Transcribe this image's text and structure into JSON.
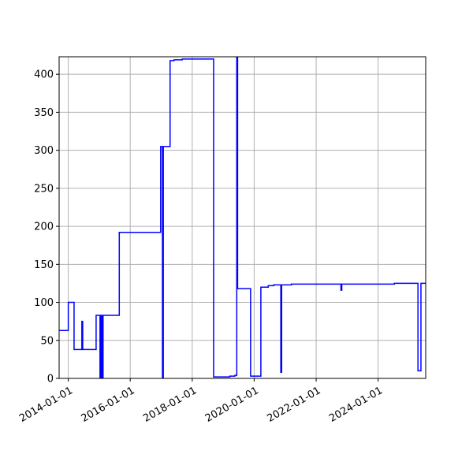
{
  "chart_data": {
    "type": "line",
    "title": "",
    "xlabel": "",
    "ylabel": "",
    "x_axis_type": "date",
    "xlim": [
      "2013-09-15",
      "2025-07-15"
    ],
    "ylim": [
      0,
      423
    ],
    "grid": true,
    "line_color": "#0000ff",
    "axis_color": "#000000",
    "grid_color": "#b0b0b0",
    "x_ticks": [
      {
        "value": "2014-01-01",
        "label": "2014-01-01"
      },
      {
        "value": "2016-01-01",
        "label": "2016-01-01"
      },
      {
        "value": "2018-01-01",
        "label": "2018-01-01"
      },
      {
        "value": "2020-01-01",
        "label": "2020-01-01"
      },
      {
        "value": "2022-01-01",
        "label": "2022-01-01"
      },
      {
        "value": "2024-01-01",
        "label": "2024-01-01"
      }
    ],
    "y_ticks": [
      {
        "value": 0,
        "label": "0"
      },
      {
        "value": 50,
        "label": "50"
      },
      {
        "value": 100,
        "label": "100"
      },
      {
        "value": 150,
        "label": "150"
      },
      {
        "value": 200,
        "label": "200"
      },
      {
        "value": 250,
        "label": "250"
      },
      {
        "value": 300,
        "label": "300"
      },
      {
        "value": 350,
        "label": "350"
      },
      {
        "value": 400,
        "label": "400"
      }
    ],
    "series": [
      {
        "step": "post",
        "points": [
          [
            "2013-09-15",
            63
          ],
          [
            "2014-01-01",
            100
          ],
          [
            "2014-03-10",
            38
          ],
          [
            "2014-06-10",
            75
          ],
          [
            "2014-06-20",
            38
          ],
          [
            "2014-11-25",
            83
          ],
          [
            "2015-01-10",
            0
          ],
          [
            "2015-01-22",
            83
          ],
          [
            "2015-02-05",
            0
          ],
          [
            "2015-02-15",
            83
          ],
          [
            "2015-08-25",
            192
          ],
          [
            "2016-12-25",
            305
          ],
          [
            "2017-01-15",
            0
          ],
          [
            "2017-01-25",
            305
          ],
          [
            "2017-04-15",
            418
          ],
          [
            "2017-06-01",
            419
          ],
          [
            "2017-09-05",
            420
          ],
          [
            "2018-09-10",
            2
          ],
          [
            "2019-03-20",
            3
          ],
          [
            "2019-05-20",
            4
          ],
          [
            "2019-06-10",
            423
          ],
          [
            "2019-06-20",
            118
          ],
          [
            "2019-11-20",
            3
          ],
          [
            "2020-03-20",
            120
          ],
          [
            "2020-06-15",
            122
          ],
          [
            "2020-08-20",
            123
          ],
          [
            "2020-11-10",
            8
          ],
          [
            "2020-11-20",
            123
          ],
          [
            "2021-03-15",
            124
          ],
          [
            "2022-10-20",
            116
          ],
          [
            "2022-10-30",
            124
          ],
          [
            "2024-07-10",
            125
          ],
          [
            "2025-04-15",
            10
          ],
          [
            "2025-05-20",
            125
          ],
          [
            "2025-07-15",
            125
          ]
        ]
      }
    ]
  }
}
